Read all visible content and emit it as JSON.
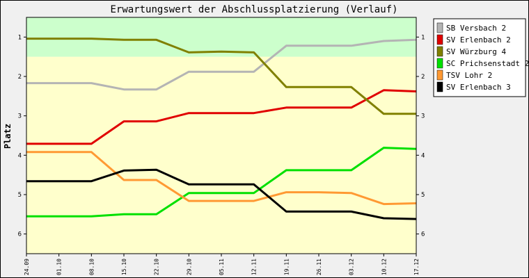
{
  "chart_data": {
    "type": "line",
    "title": "Erwartungswert der Abschlussplatzierung (Verlauf)",
    "xlabel": "",
    "ylabel": "Platz",
    "categories": [
      "24.09",
      "01.10",
      "08.10",
      "15.10",
      "22.10",
      "29.10",
      "05.11",
      "12.11",
      "19.11",
      "26.11",
      "03.12",
      "10.12",
      "17.12"
    ],
    "y_ticks": [
      1,
      2,
      3,
      4,
      5,
      6
    ],
    "ylim": [
      0.5,
      6.5
    ],
    "y_inverted": true,
    "bands": [
      {
        "from": 0.5,
        "to": 1.5,
        "color": "#ccffcc"
      },
      {
        "from": 1.5,
        "to": 6.5,
        "color": "#ffffcc"
      }
    ],
    "grid": false,
    "legend_position": "right",
    "series": [
      {
        "name": "SB Versbach 2",
        "color": "#b4b4b4",
        "values": [
          2.17,
          2.17,
          2.17,
          2.33,
          2.33,
          1.88,
          1.88,
          1.88,
          1.22,
          1.22,
          1.22,
          1.1,
          1.07
        ]
      },
      {
        "name": "SV Erlenbach 2",
        "color": "#e00000",
        "values": [
          3.71,
          3.71,
          3.71,
          3.14,
          3.14,
          2.93,
          2.93,
          2.93,
          2.79,
          2.79,
          2.79,
          2.35,
          2.38
        ]
      },
      {
        "name": "SV Würzburg 4",
        "color": "#808000",
        "values": [
          1.04,
          1.04,
          1.04,
          1.07,
          1.07,
          1.39,
          1.37,
          1.39,
          2.27,
          2.27,
          2.27,
          2.95,
          2.95
        ]
      },
      {
        "name": "SC Prichsenstadt 2",
        "color": "#00e000",
        "values": [
          5.55,
          5.55,
          5.55,
          5.5,
          5.5,
          4.96,
          4.96,
          4.96,
          4.38,
          4.38,
          4.38,
          3.81,
          3.84
        ]
      },
      {
        "name": "TSV Lohr 2",
        "color": "#ff9933",
        "values": [
          3.92,
          3.92,
          3.92,
          4.63,
          4.63,
          5.16,
          5.16,
          5.16,
          4.94,
          4.94,
          4.96,
          5.24,
          5.22
        ]
      },
      {
        "name": "SV Erlenbach 3",
        "color": "#000000",
        "values": [
          4.66,
          4.66,
          4.66,
          4.39,
          4.37,
          4.74,
          4.74,
          4.74,
          5.43,
          5.43,
          5.43,
          5.6,
          5.62
        ]
      }
    ]
  }
}
